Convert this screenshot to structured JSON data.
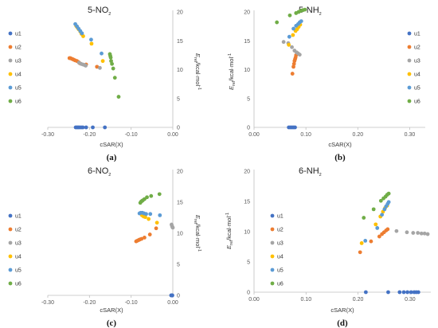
{
  "chart_data": [
    {
      "type": "scatter",
      "panel_label": "(a)",
      "title_main": "5-NO",
      "title_sub": "2",
      "xlabel": "cSAR(X)",
      "ylabel_symbol": "E",
      "ylabel_sub": "rel",
      "ylabel_unit": "/kcal·mol",
      "ylabel_sup": "-1",
      "xlim": [
        -0.3,
        0.0
      ],
      "ylim": [
        0,
        20
      ],
      "xticks": [
        -0.3,
        -0.2,
        -0.1,
        0.0
      ],
      "xtick_labels": [
        "-0.30",
        "-0.20",
        "-0.10",
        "0.00"
      ],
      "yticks": [
        0,
        5,
        10,
        15,
        20
      ],
      "ytick_labels": [
        "0",
        "5",
        "10",
        "15",
        "20"
      ],
      "y_axis_side": "right",
      "legend_position": "left",
      "grid": false,
      "series": [
        {
          "name": "u1",
          "color": "#4472C4",
          "points": [
            [
              -0.233,
              0
            ],
            [
              -0.23,
              0
            ],
            [
              -0.227,
              0
            ],
            [
              -0.224,
              0
            ],
            [
              -0.22,
              0
            ],
            [
              -0.216,
              0
            ],
            [
              -0.208,
              0
            ],
            [
              -0.192,
              0
            ],
            [
              -0.163,
              0
            ]
          ]
        },
        {
          "name": "u2",
          "color": "#ED7D31",
          "points": [
            [
              -0.248,
              12.0
            ],
            [
              -0.246,
              12.0
            ],
            [
              -0.243,
              11.9
            ],
            [
              -0.24,
              11.8
            ],
            [
              -0.237,
              11.7
            ],
            [
              -0.234,
              11.6
            ],
            [
              -0.23,
              11.5
            ],
            [
              -0.226,
              11.3
            ],
            [
              -0.223,
              11.1
            ],
            [
              -0.208,
              10.9
            ],
            [
              -0.182,
              10.5
            ]
          ]
        },
        {
          "name": "u3",
          "color": "#A5A5A5",
          "points": [
            [
              -0.225,
              11.2
            ],
            [
              -0.22,
              11.0
            ],
            [
              -0.216,
              10.9
            ],
            [
              -0.212,
              10.8
            ],
            [
              -0.209,
              10.7
            ],
            [
              -0.175,
              10.3
            ]
          ]
        },
        {
          "name": "u4",
          "color": "#FFC000",
          "points": [
            [
              -0.232,
              17.6
            ],
            [
              -0.229,
              17.3
            ],
            [
              -0.226,
              17.0
            ],
            [
              -0.222,
              16.6
            ],
            [
              -0.219,
              16.2
            ],
            [
              -0.215,
              15.8
            ],
            [
              -0.195,
              14.5
            ],
            [
              -0.168,
              11.5
            ]
          ]
        },
        {
          "name": "u5",
          "color": "#5B9BD5",
          "points": [
            [
              -0.234,
              17.9
            ],
            [
              -0.23,
              17.5
            ],
            [
              -0.226,
              17.1
            ],
            [
              -0.222,
              16.7
            ],
            [
              -0.218,
              16.3
            ],
            [
              -0.196,
              15.2
            ],
            [
              -0.171,
              12.8
            ]
          ]
        },
        {
          "name": "u6",
          "color": "#70AD47",
          "points": [
            [
              -0.151,
              12.7
            ],
            [
              -0.15,
              12.4
            ],
            [
              -0.149,
              12.1
            ],
            [
              -0.148,
              11.5
            ],
            [
              -0.146,
              11.0
            ],
            [
              -0.143,
              10.2
            ],
            [
              -0.139,
              8.6
            ],
            [
              -0.13,
              5.3
            ]
          ]
        }
      ]
    },
    {
      "type": "scatter",
      "panel_label": "(b)",
      "title_main": "5-NH",
      "title_sub": "2",
      "xlabel": "cSAR(X)",
      "ylabel_symbol": "E",
      "ylabel_sub": "rel",
      "ylabel_unit": "/kcal·mol",
      "ylabel_sup": "-1",
      "xlim": [
        0.0,
        0.33
      ],
      "ylim": [
        0,
        20
      ],
      "xticks": [
        0.0,
        0.1,
        0.2,
        0.3
      ],
      "xtick_labels": [
        "0.00",
        "0.10",
        "0.20",
        "0.30"
      ],
      "yticks": [
        0,
        5,
        10,
        15,
        20
      ],
      "ytick_labels": [
        "0",
        "5",
        "10",
        "15",
        "20"
      ],
      "y_axis_side": "left",
      "legend_position": "right",
      "grid": false,
      "series": [
        {
          "name": "u1",
          "color": "#4472C4",
          "points": [
            [
              0.067,
              0
            ],
            [
              0.07,
              0
            ],
            [
              0.073,
              0
            ],
            [
              0.076,
              0
            ],
            [
              0.079,
              0
            ]
          ]
        },
        {
          "name": "u2",
          "color": "#ED7D31",
          "points": [
            [
              0.074,
              9.3
            ],
            [
              0.076,
              10.5
            ],
            [
              0.077,
              11.0
            ],
            [
              0.078,
              11.5
            ],
            [
              0.079,
              11.8
            ],
            [
              0.08,
              12.1
            ],
            [
              0.081,
              12.5
            ]
          ]
        },
        {
          "name": "u3",
          "color": "#A5A5A5",
          "points": [
            [
              0.057,
              14.8
            ],
            [
              0.066,
              14.6
            ],
            [
              0.073,
              13.9
            ],
            [
              0.078,
              13.3
            ],
            [
              0.082,
              13.0
            ],
            [
              0.085,
              12.8
            ],
            [
              0.088,
              12.6
            ]
          ]
        },
        {
          "name": "u4",
          "color": "#FFC000",
          "points": [
            [
              0.067,
              14.3
            ],
            [
              0.075,
              16.0
            ],
            [
              0.08,
              16.7
            ],
            [
              0.083,
              17.0
            ],
            [
              0.086,
              17.4
            ],
            [
              0.089,
              17.8
            ]
          ]
        },
        {
          "name": "u5",
          "color": "#5B9BD5",
          "points": [
            [
              0.068,
              15.7
            ],
            [
              0.076,
              17.1
            ],
            [
              0.081,
              17.6
            ],
            [
              0.085,
              17.9
            ],
            [
              0.088,
              18.2
            ],
            [
              0.091,
              18.4
            ]
          ]
        },
        {
          "name": "u6",
          "color": "#70AD47",
          "points": [
            [
              0.044,
              18.2
            ],
            [
              0.069,
              19.4
            ],
            [
              0.081,
              19.8
            ],
            [
              0.086,
              20.0
            ],
            [
              0.09,
              20.2
            ],
            [
              0.094,
              20.3
            ],
            [
              0.098,
              20.4
            ]
          ]
        }
      ]
    },
    {
      "type": "scatter",
      "panel_label": "(c)",
      "title_main": "6-NO",
      "title_sub": "2",
      "xlabel": "cSAR(X)",
      "ylabel_symbol": "E",
      "ylabel_sub": "rel",
      "ylabel_unit": "/kcal·mol",
      "ylabel_sup": "-1",
      "xlim": [
        -0.3,
        0.0
      ],
      "ylim": [
        0,
        20
      ],
      "xticks": [
        -0.3,
        -0.2,
        -0.1,
        0.0
      ],
      "xtick_labels": [
        "-0.30",
        "-0.20",
        "-0.10",
        "0.00"
      ],
      "yticks": [
        0,
        5,
        10,
        15,
        20
      ],
      "ytick_labels": [
        "0",
        "5",
        "10",
        "15",
        "20"
      ],
      "y_axis_side": "right",
      "legend_position": "left",
      "grid": false,
      "series": [
        {
          "name": "u1",
          "color": "#4472C4",
          "points": [
            [
              -0.004,
              0
            ],
            [
              -0.003,
              0
            ],
            [
              -0.002,
              0
            ],
            [
              -0.001,
              0
            ]
          ]
        },
        {
          "name": "u2",
          "color": "#ED7D31",
          "points": [
            [
              -0.088,
              8.7
            ],
            [
              -0.085,
              8.8
            ],
            [
              -0.082,
              8.9
            ],
            [
              -0.079,
              9.0
            ],
            [
              -0.075,
              9.1
            ],
            [
              -0.068,
              9.3
            ],
            [
              -0.055,
              9.8
            ],
            [
              -0.04,
              10.8
            ]
          ]
        },
        {
          "name": "u3",
          "color": "#A5A5A5",
          "points": [
            [
              -0.003,
              11.4
            ],
            [
              -0.002,
              11.2
            ],
            [
              -0.001,
              11.0
            ],
            [
              0.0,
              10.9
            ]
          ]
        },
        {
          "name": "u4",
          "color": "#FFC000",
          "points": [
            [
              -0.078,
              13.2
            ],
            [
              -0.074,
              12.9
            ],
            [
              -0.07,
              12.7
            ],
            [
              -0.066,
              12.6
            ],
            [
              -0.058,
              12.3
            ],
            [
              -0.038,
              11.7
            ]
          ]
        },
        {
          "name": "u5",
          "color": "#5B9BD5",
          "points": [
            [
              -0.08,
              13.2
            ],
            [
              -0.077,
              13.3
            ],
            [
              -0.073,
              13.3
            ],
            [
              -0.069,
              13.2
            ],
            [
              -0.064,
              13.1
            ],
            [
              -0.054,
              13.1
            ],
            [
              -0.031,
              12.9
            ]
          ]
        },
        {
          "name": "u6",
          "color": "#70AD47",
          "points": [
            [
              -0.078,
              14.9
            ],
            [
              -0.076,
              15.1
            ],
            [
              -0.074,
              15.2
            ],
            [
              -0.072,
              15.3
            ],
            [
              -0.068,
              15.5
            ],
            [
              -0.062,
              15.8
            ],
            [
              -0.052,
              16.0
            ],
            [
              -0.032,
              16.3
            ]
          ]
        }
      ]
    },
    {
      "type": "scatter",
      "panel_label": "(d)",
      "title_main": "6-NH",
      "title_sub": "2",
      "xlabel": "cSAR(X)",
      "ylabel_symbol": "E",
      "ylabel_sub": "rel",
      "ylabel_unit": "/kcal·mol",
      "ylabel_sup": "-1",
      "xlim": [
        0.0,
        0.34
      ],
      "ylim": [
        0,
        20
      ],
      "xticks": [
        0.0,
        0.1,
        0.2,
        0.3
      ],
      "xtick_labels": [
        "0.00",
        "0.10",
        "0.20",
        "0.30"
      ],
      "yticks": [
        0,
        5,
        10,
        15,
        20
      ],
      "ytick_labels": [
        "0",
        "5",
        "10",
        "15",
        "20"
      ],
      "y_axis_side": "left",
      "legend_position": "left",
      "grid": false,
      "series": [
        {
          "name": "u1",
          "color": "#4472C4",
          "points": [
            [
              0.215,
              0
            ],
            [
              0.258,
              0
            ],
            [
              0.28,
              0
            ],
            [
              0.288,
              0
            ],
            [
              0.295,
              0
            ],
            [
              0.302,
              0
            ],
            [
              0.308,
              0
            ],
            [
              0.312,
              0
            ],
            [
              0.316,
              0
            ]
          ]
        },
        {
          "name": "u2",
          "color": "#ED7D31",
          "points": [
            [
              0.204,
              6.6
            ],
            [
              0.225,
              8.4
            ],
            [
              0.241,
              9.2
            ],
            [
              0.246,
              9.6
            ],
            [
              0.25,
              9.9
            ],
            [
              0.254,
              10.2
            ],
            [
              0.257,
              10.4
            ]
          ]
        },
        {
          "name": "u3",
          "color": "#A5A5A5",
          "points": [
            [
              0.274,
              10.1
            ],
            [
              0.294,
              9.9
            ],
            [
              0.306,
              9.8
            ],
            [
              0.315,
              9.8
            ],
            [
              0.322,
              9.7
            ],
            [
              0.328,
              9.7
            ],
            [
              0.334,
              9.6
            ]
          ]
        },
        {
          "name": "u4",
          "color": "#FFC000",
          "points": [
            [
              0.207,
              8.1
            ],
            [
              0.234,
              11.2
            ],
            [
              0.243,
              12.5
            ],
            [
              0.248,
              13.3
            ],
            [
              0.252,
              13.9
            ],
            [
              0.256,
              14.3
            ]
          ]
        },
        {
          "name": "u5",
          "color": "#5B9BD5",
          "points": [
            [
              0.214,
              8.5
            ],
            [
              0.237,
              10.6
            ],
            [
              0.246,
              12.8
            ],
            [
              0.251,
              13.7
            ],
            [
              0.254,
              14.2
            ],
            [
              0.257,
              14.6
            ],
            [
              0.259,
              14.9
            ]
          ]
        },
        {
          "name": "u6",
          "color": "#70AD47",
          "points": [
            [
              0.211,
              12.3
            ],
            [
              0.23,
              13.7
            ],
            [
              0.244,
              15.1
            ],
            [
              0.249,
              15.5
            ],
            [
              0.253,
              15.8
            ],
            [
              0.256,
              16.1
            ],
            [
              0.259,
              16.3
            ]
          ]
        }
      ]
    }
  ]
}
